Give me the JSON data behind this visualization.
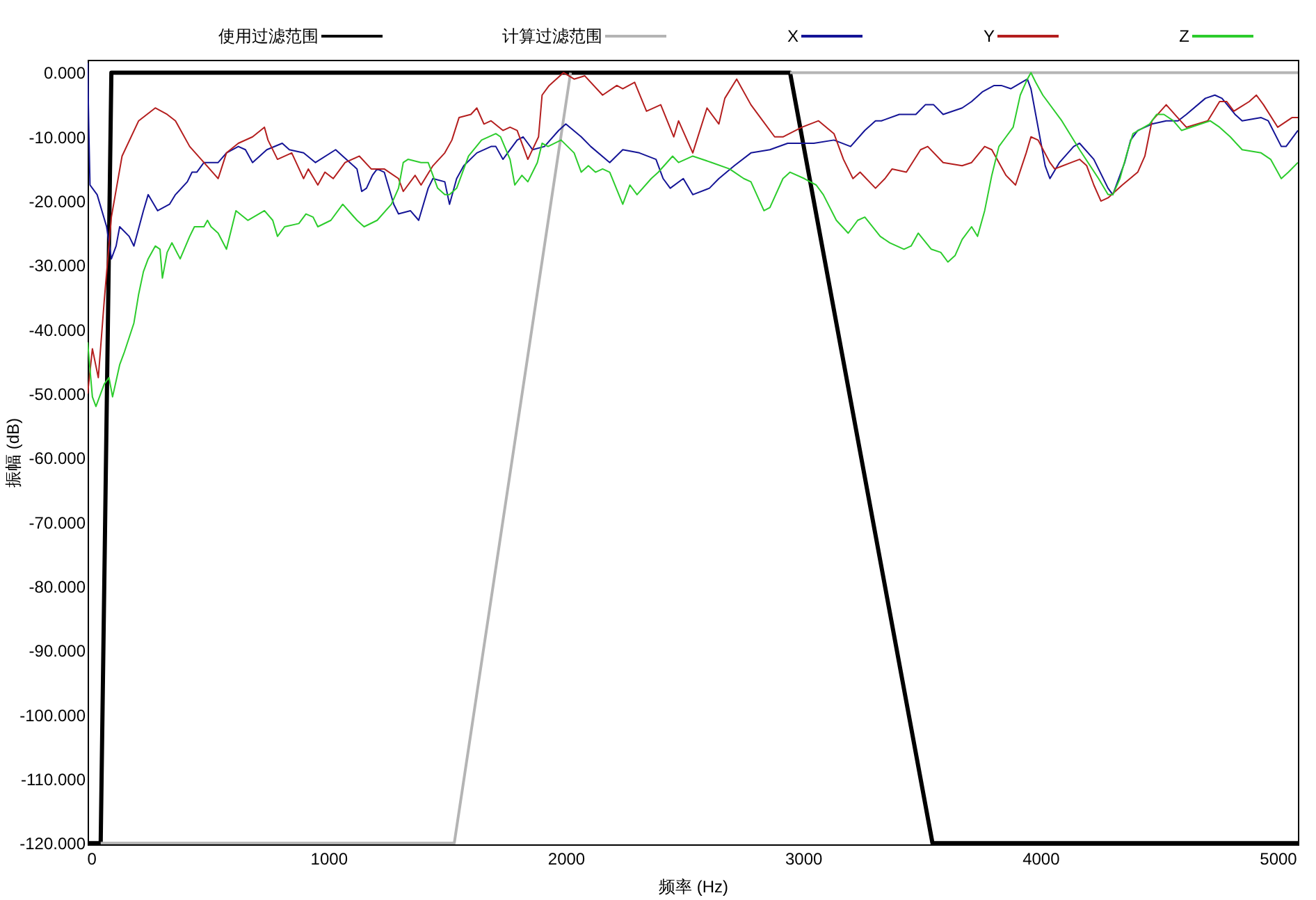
{
  "chart_data": {
    "type": "line",
    "xlabel": "频率 (Hz)",
    "ylabel": "振幅 (dB)",
    "xlim": [
      -15,
      5085
    ],
    "ylim": [
      -120.2,
      2
    ],
    "xticks": [
      0,
      1000,
      2000,
      3000,
      4000,
      5000
    ],
    "yticks": [
      {
        "value": 0,
        "label": "0.000"
      },
      {
        "value": -10,
        "label": "-10.000"
      },
      {
        "value": -20,
        "label": "-20.000"
      },
      {
        "value": -30,
        "label": "-30.000"
      },
      {
        "value": -40,
        "label": "-40.000"
      },
      {
        "value": -50,
        "label": "-50.000"
      },
      {
        "value": -60,
        "label": "-60.000"
      },
      {
        "value": -70,
        "label": "-70.000"
      },
      {
        "value": -80,
        "label": "-80.000"
      },
      {
        "value": -90,
        "label": "-90.000"
      },
      {
        "value": -100,
        "label": "-100.000"
      },
      {
        "value": -110,
        "label": "-110.000"
      },
      {
        "value": -120,
        "label": "-120.000"
      }
    ],
    "legend": "top",
    "series": [
      {
        "name": "使用过滤范围",
        "color": "#000000",
        "x": [
          -15,
          40,
          85,
          2945,
          3545,
          5085
        ],
        "values": [
          -120,
          -120,
          0,
          0,
          -120,
          -120
        ]
      },
      {
        "name": "计算过滤范围",
        "color": "#b4b4b4",
        "x": [
          40,
          1530,
          2020,
          2480,
          2945,
          5085
        ],
        "values": [
          -120,
          -120,
          0,
          null,
          0,
          0
        ]
      },
      {
        "name": "X",
        "color": "#141496",
        "x": [
          -15,
          -10,
          -5,
          5,
          25,
          65,
          85,
          105,
          120,
          160,
          180,
          220,
          240,
          280,
          330,
          355,
          405,
          425,
          445,
          475,
          535,
          570,
          620,
          650,
          680,
          740,
          805,
          835,
          895,
          945,
          1030,
          1090,
          1120,
          1140,
          1160,
          1185,
          1205,
          1235,
          1275,
          1295,
          1345,
          1380,
          1420,
          1440,
          1490,
          1510,
          1540,
          1570,
          1625,
          1685,
          1705,
          1735,
          1795,
          1820,
          1860,
          1910,
          1970,
          2000,
          2065,
          2105,
          2185,
          2240,
          2310,
          2380,
          2410,
          2440,
          2495,
          2535,
          2605,
          2645,
          2710,
          2780,
          2860,
          2935,
          3045,
          3130,
          3200,
          3260,
          3305,
          3330,
          3405,
          3475,
          3515,
          3550,
          3590,
          3670,
          3710,
          3755,
          3805,
          3835,
          3875,
          3945,
          3960,
          3980,
          4000,
          4020,
          4040,
          4080,
          4140,
          4165,
          4225,
          4285,
          4305,
          4355,
          4380,
          4410,
          4470,
          4530,
          4580,
          4615,
          4695,
          4735,
          4765,
          4820,
          4850,
          4930,
          4960,
          5015,
          5035,
          5085
        ],
        "values": [
          1.5,
          -9,
          -17.5,
          -18,
          -19,
          -24,
          -29,
          -27,
          -24,
          -25.5,
          -27,
          -21.5,
          -19,
          -21.5,
          -20.5,
          -19,
          -17,
          -15.5,
          -15.5,
          -14,
          -14,
          -12.5,
          -11.5,
          -12,
          -14,
          -12,
          -11,
          -12,
          -12.5,
          -14,
          -12,
          -14,
          -15,
          -18.5,
          -18,
          -16,
          -15,
          -15.5,
          -20.5,
          -22,
          -21.5,
          -23,
          -18,
          -16.5,
          -17,
          -20.5,
          -16.5,
          -14.5,
          -12.5,
          -11.5,
          -11.5,
          -13.5,
          -10.5,
          -10,
          -12,
          -11.5,
          -9,
          -8,
          -10,
          -11.5,
          -14,
          -12,
          -12.5,
          -13.5,
          -16.5,
          -18,
          -16.5,
          -19,
          -18,
          -16.5,
          -14.5,
          -12.5,
          -12,
          -11,
          -11,
          -10.5,
          -11.5,
          -9,
          -7.5,
          -7.5,
          -6.5,
          -6.5,
          -5,
          -5,
          -6.5,
          -5.5,
          -4.5,
          -3,
          -2,
          -2,
          -2.5,
          -1,
          -2.5,
          -6.5,
          -10.5,
          -14.5,
          -16.5,
          -14,
          -11.5,
          -11,
          -13.5,
          -18,
          -19,
          -14,
          -10.5,
          -9,
          -8,
          -7.5,
          -7.5,
          -6.5,
          -4,
          -3.5,
          -4,
          -6.5,
          -7.5,
          -7,
          -7.5,
          -11.5,
          -11.5,
          -9
        ]
      },
      {
        "name": "Y",
        "color": "#b41e1e",
        "x": [
          -15,
          5,
          30,
          55,
          85,
          130,
          200,
          270,
          320,
          355,
          415,
          475,
          535,
          570,
          620,
          680,
          730,
          745,
          785,
          845,
          895,
          915,
          955,
          985,
          1020,
          1070,
          1130,
          1180,
          1235,
          1295,
          1315,
          1365,
          1390,
          1440,
          1490,
          1520,
          1550,
          1600,
          1625,
          1655,
          1685,
          1735,
          1765,
          1795,
          1840,
          1885,
          1900,
          1930,
          1990,
          2035,
          2080,
          2155,
          2215,
          2240,
          2290,
          2340,
          2400,
          2455,
          2475,
          2535,
          2595,
          2645,
          2670,
          2720,
          2780,
          2820,
          2880,
          2915,
          2995,
          3065,
          3130,
          3170,
          3210,
          3240,
          3305,
          3345,
          3375,
          3435,
          3495,
          3525,
          3590,
          3670,
          3710,
          3765,
          3795,
          3855,
          3895,
          3940,
          3960,
          3990,
          4040,
          4060,
          4130,
          4165,
          4195,
          4225,
          4255,
          4285,
          4345,
          4410,
          4440,
          4470,
          4530,
          4590,
          4615,
          4705,
          4755,
          4785,
          4815,
          4880,
          4910,
          4940,
          5000,
          5060,
          5085
        ],
        "values": [
          -50,
          -43,
          -47.5,
          -35.5,
          -22.5,
          -13,
          -7.5,
          -5.5,
          -6.5,
          -7.5,
          -11.5,
          -14,
          -16.5,
          -12.5,
          -11,
          -10,
          -8.5,
          -10.5,
          -13.5,
          -12.5,
          -16.5,
          -15,
          -17.5,
          -15.5,
          -16.5,
          -14,
          -13,
          -15,
          -15,
          -16.5,
          -18.5,
          -16,
          -17.5,
          -14.5,
          -12.5,
          -10.5,
          -7,
          -6.5,
          -5.5,
          -8,
          -7.5,
          -9,
          -8.5,
          -9,
          -13.5,
          -10,
          -3.5,
          -2,
          0,
          -1,
          -0.5,
          -3.5,
          -2,
          -2.5,
          -1.5,
          -6,
          -5,
          -10,
          -7.5,
          -12.5,
          -5.5,
          -8,
          -4,
          -1,
          -5,
          -7,
          -10,
          -10,
          -8.5,
          -7.5,
          -9.5,
          -13.5,
          -16.5,
          -15.5,
          -18,
          -16.5,
          -15,
          -15.5,
          -12,
          -11.5,
          -14,
          -14.5,
          -14,
          -11.5,
          -12,
          -16,
          -17.5,
          -12.5,
          -10,
          -10.5,
          -14,
          -15,
          -14,
          -13.5,
          -14.5,
          -17.5,
          -20,
          -19.5,
          -17.5,
          -15.5,
          -13,
          -7.5,
          -5,
          -7.5,
          -8.5,
          -7.5,
          -4.5,
          -4.5,
          -6,
          -4.5,
          -3.5,
          -5,
          -8.5,
          -7,
          -7
        ]
      },
      {
        "name": "Z",
        "color": "#2ccc2c",
        "x": [
          -15,
          5,
          20,
          55,
          75,
          90,
          120,
          140,
          180,
          200,
          220,
          240,
          270,
          290,
          300,
          320,
          340,
          375,
          415,
          435,
          475,
          490,
          505,
          535,
          570,
          610,
          660,
          730,
          765,
          785,
          815,
          875,
          905,
          935,
          955,
          1010,
          1060,
          1120,
          1150,
          1205,
          1265,
          1295,
          1315,
          1335,
          1390,
          1420,
          1440,
          1460,
          1490,
          1510,
          1540,
          1560,
          1590,
          1645,
          1705,
          1725,
          1765,
          1785,
          1815,
          1840,
          1880,
          1900,
          1925,
          1980,
          2035,
          2065,
          2095,
          2125,
          2155,
          2185,
          2240,
          2270,
          2300,
          2360,
          2390,
          2450,
          2475,
          2535,
          2615,
          2690,
          2750,
          2780,
          2835,
          2860,
          2915,
          2945,
          3005,
          3055,
          3085,
          3140,
          3190,
          3230,
          3260,
          3325,
          3365,
          3425,
          3455,
          3485,
          3540,
          3580,
          3610,
          3640,
          3670,
          3710,
          3735,
          3765,
          3795,
          3825,
          3855,
          3885,
          3915,
          3945,
          3960,
          3980,
          4010,
          4090,
          4165,
          4245,
          4285,
          4305,
          4335,
          4365,
          4390,
          4460,
          4490,
          4520,
          4560,
          4595,
          4675,
          4715,
          4755,
          4800,
          4850,
          4930,
          4970,
          5015,
          5045,
          5085
        ],
        "values": [
          -42,
          -50.5,
          -52,
          -48.5,
          -47.5,
          -50.5,
          -45.5,
          -43.5,
          -39,
          -34.5,
          -31,
          -29,
          -27,
          -27.5,
          -32,
          -28,
          -26.5,
          -29,
          -25.5,
          -24,
          -24,
          -23,
          -24,
          -25,
          -27.5,
          -21.5,
          -23,
          -21.5,
          -23,
          -25.5,
          -24,
          -23.5,
          -22,
          -22.5,
          -24,
          -23,
          -20.5,
          -23,
          -24,
          -23,
          -20.5,
          -18,
          -14,
          -13.5,
          -14,
          -14,
          -16,
          -18,
          -19,
          -19,
          -18,
          -16,
          -13,
          -10.5,
          -9.5,
          -10,
          -13.5,
          -17.5,
          -16,
          -17,
          -14,
          -11,
          -11.5,
          -10.5,
          -12.5,
          -15.5,
          -14.5,
          -15.5,
          -15,
          -15.5,
          -20.5,
          -17.5,
          -19,
          -16.5,
          -15.5,
          -13,
          -14,
          -13,
          -14,
          -15,
          -16.5,
          -17,
          -21.5,
          -21,
          -16.5,
          -15.5,
          -16.5,
          -17.5,
          -19,
          -23,
          -25,
          -23,
          -22.5,
          -25.5,
          -26.5,
          -27.5,
          -27,
          -25,
          -27.5,
          -28,
          -29.5,
          -28.5,
          -26,
          -24,
          -25.5,
          -21.5,
          -16,
          -11.5,
          -10,
          -8.5,
          -3.5,
          -1,
          0,
          -1.5,
          -3.5,
          -7.5,
          -12,
          -16.5,
          -19,
          -19,
          -16.5,
          -12.5,
          -9.5,
          -8,
          -6.5,
          -6.5,
          -7.5,
          -9,
          -8,
          -7.5,
          -8.5,
          -10,
          -12,
          -12.5,
          -13.5,
          -16.5,
          -15.5,
          -14
        ]
      }
    ]
  }
}
